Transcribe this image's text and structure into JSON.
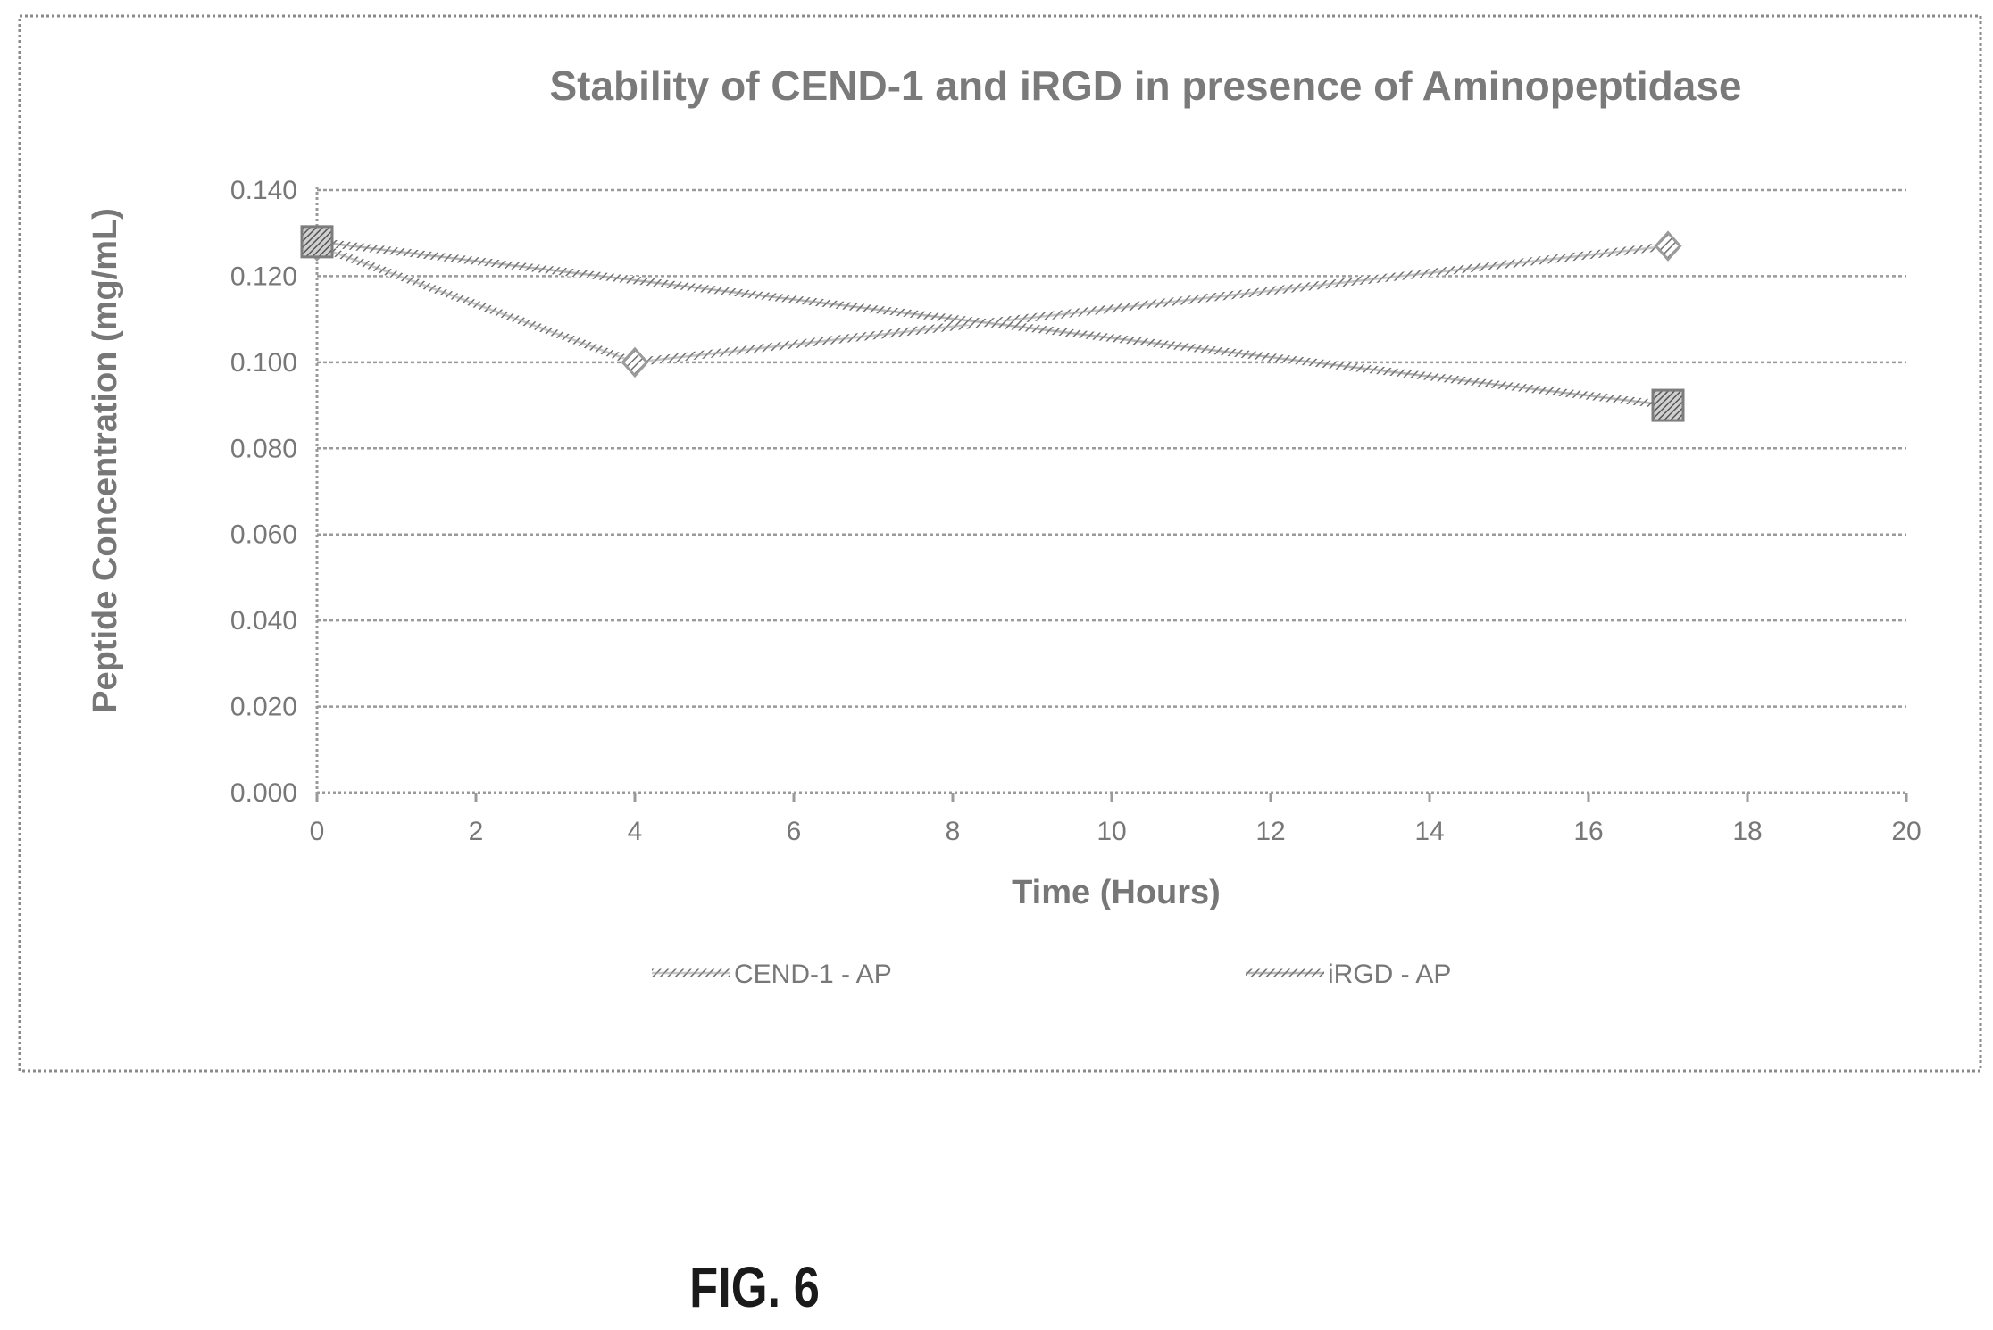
{
  "figure_label": "FIG. 6",
  "colors": {
    "frame": "#8a8a8a",
    "grid": "#9a9a9a",
    "text": "#777777",
    "cend1_series": "#9b9b9b",
    "irgd_series": "#7d7d7d"
  },
  "chart_data": {
    "type": "line",
    "title": "Stability of CEND-1 and iRGD in presence of Aminopeptidase",
    "xlabel": "Time (Hours)",
    "ylabel": "Peptide Concentration (mg/mL)",
    "xlim": [
      0,
      20
    ],
    "ylim": [
      0,
      0.14
    ],
    "x_ticks": [
      "0",
      "2",
      "4",
      "6",
      "8",
      "10",
      "12",
      "14",
      "16",
      "18",
      "20"
    ],
    "y_ticks": [
      "0.000",
      "0.020",
      "0.040",
      "0.060",
      "0.080",
      "0.100",
      "0.120",
      "0.140"
    ],
    "grid": "horizontal",
    "legend_position": "bottom",
    "series": [
      {
        "name": "CEND-1 - AP",
        "marker": "diamond",
        "x": [
          0,
          4,
          17
        ],
        "values": [
          0.127,
          0.1,
          0.127
        ]
      },
      {
        "name": "iRGD - AP",
        "marker": "square",
        "x": [
          0,
          17
        ],
        "values": [
          0.128,
          0.09
        ]
      }
    ]
  }
}
